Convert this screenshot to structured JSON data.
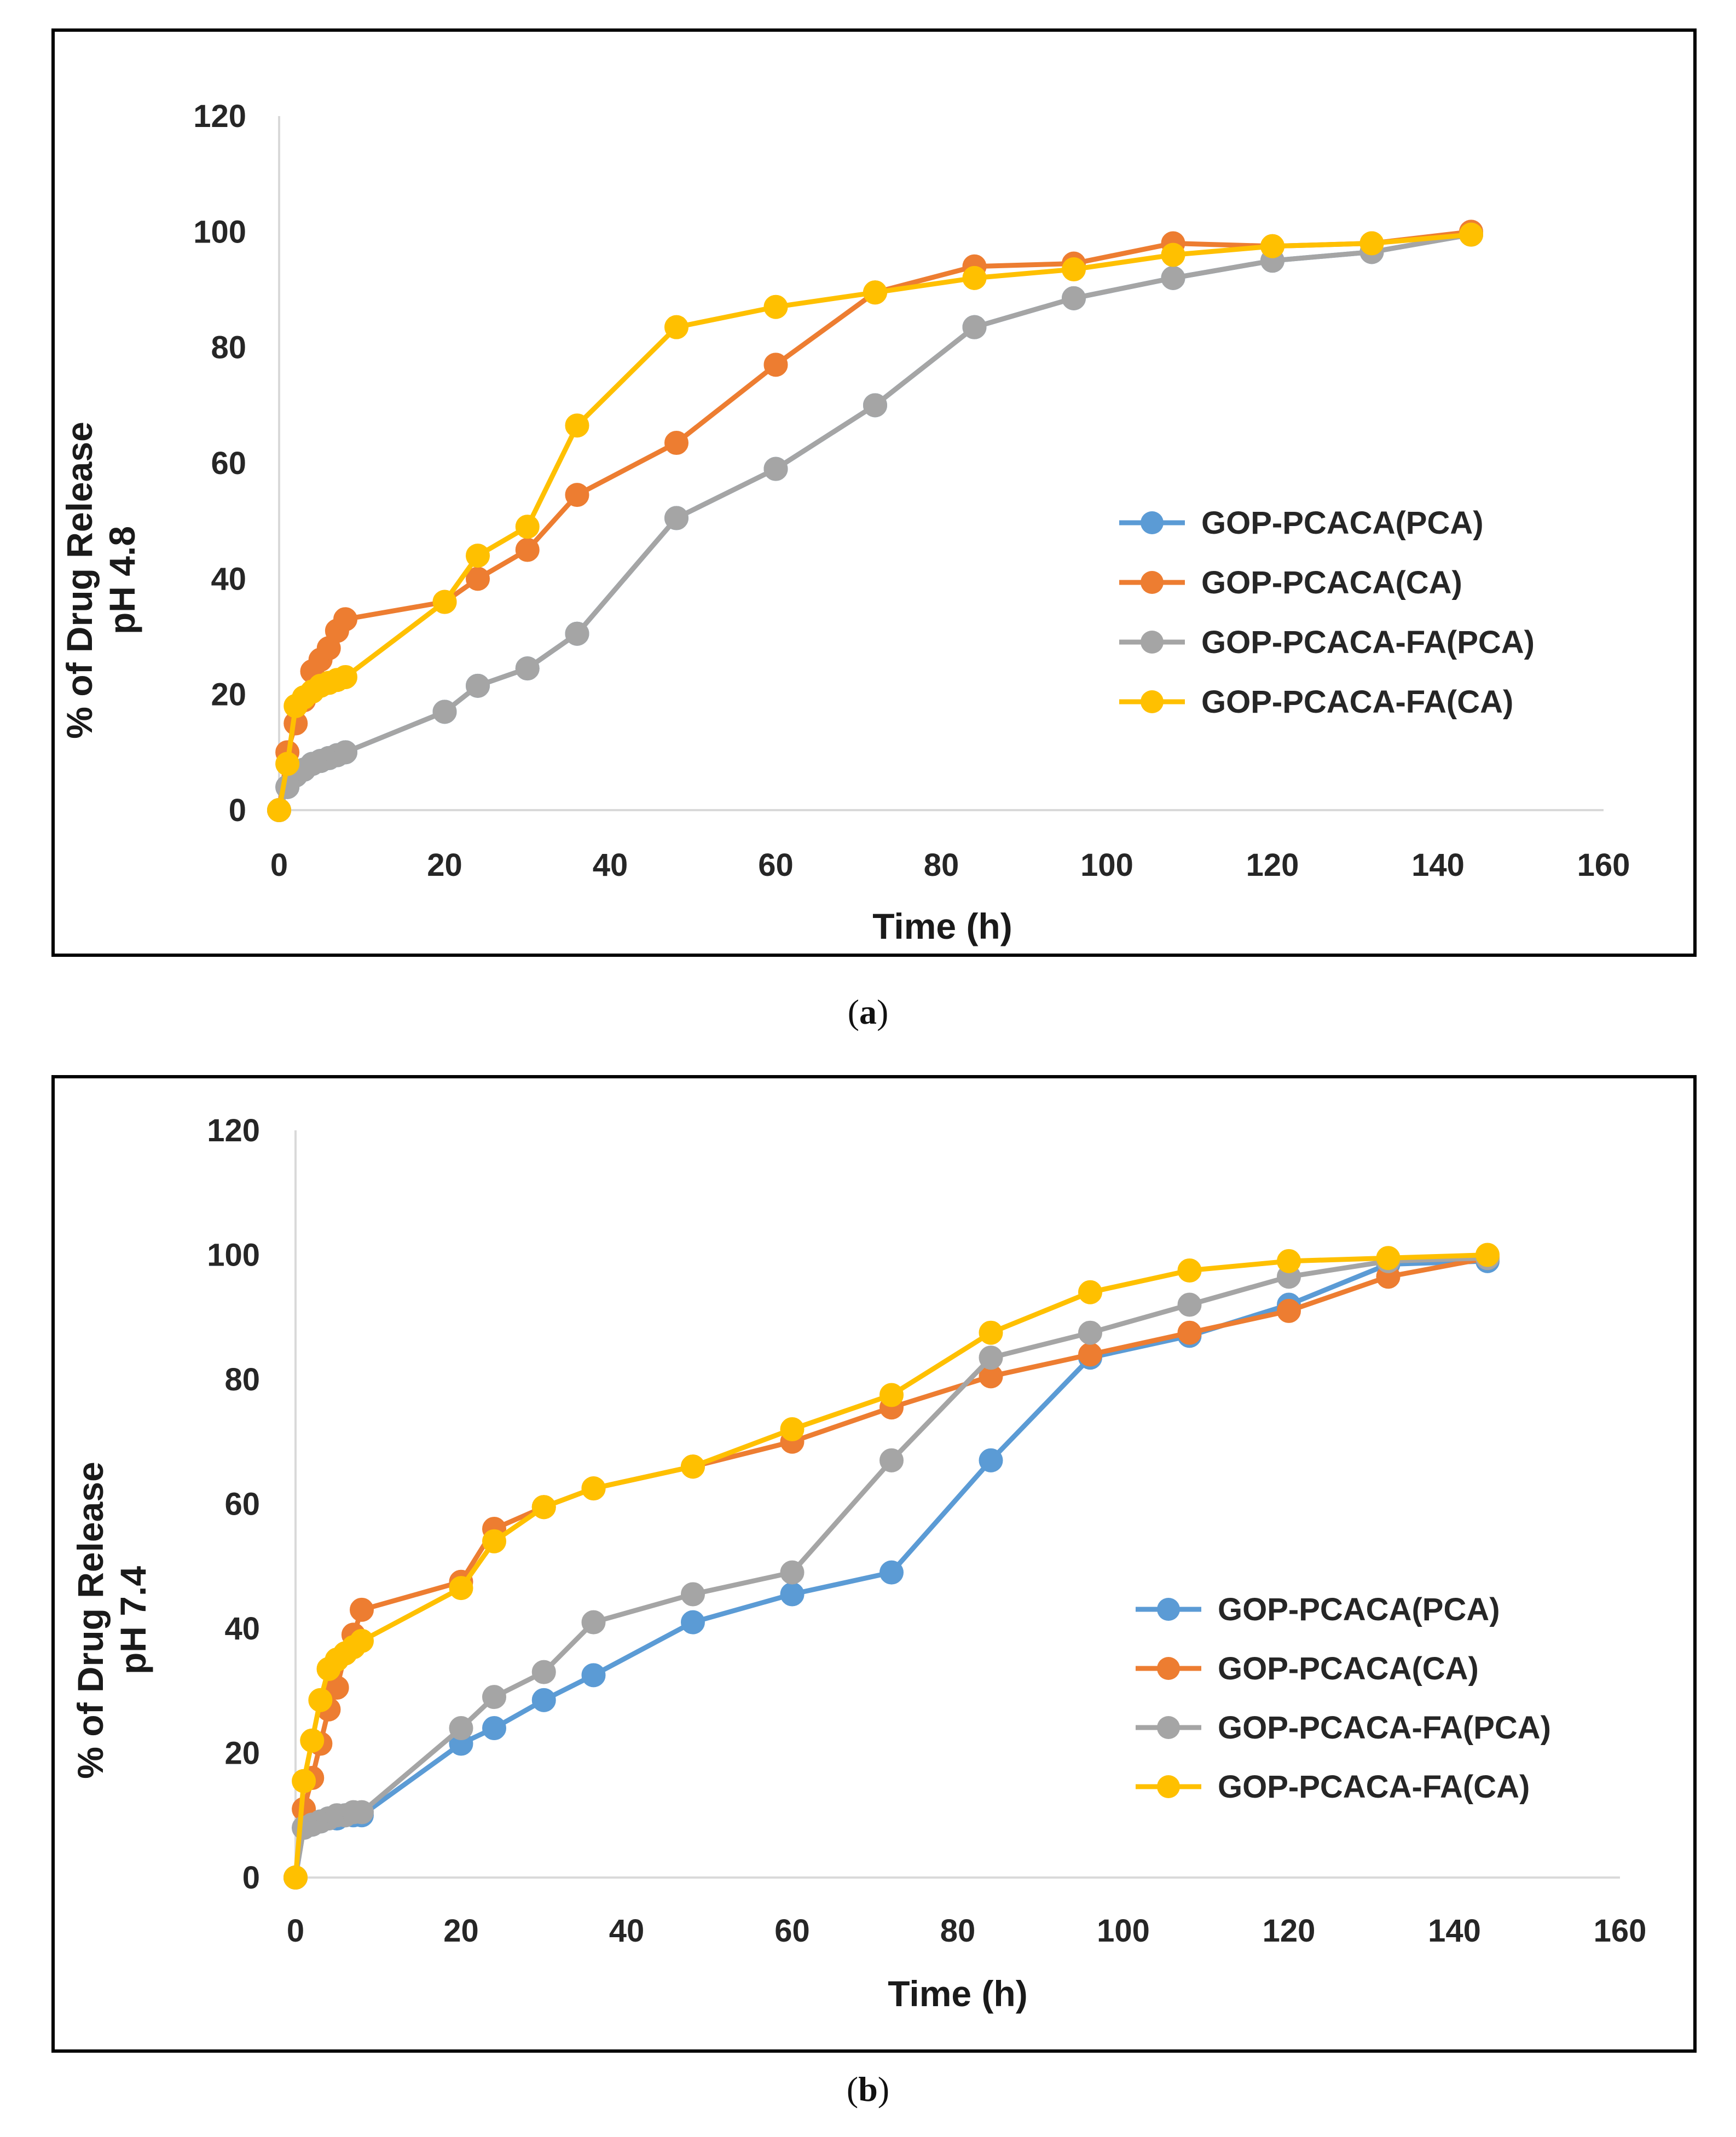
{
  "colors": {
    "GOP-PCACA(PCA)": "#5B9BD5",
    "GOP-PCACA(CA)": "#ED7D31",
    "GOP-PCACA-FA(PCA)": "#A5A5A5",
    "GOP-PCACA-FA(CA)": "#FFC000",
    "axis": "#d9d9d9",
    "frame": "#000000"
  },
  "chart_data": [
    {
      "id": "a",
      "type": "line",
      "caption_letter": "a",
      "xlabel": "Time (h)",
      "ylabel_line1": "% of Drug Release",
      "ylabel_line2": "pH 4.8",
      "xlim": [
        0,
        160
      ],
      "ylim": [
        0,
        120
      ],
      "xticks": [
        0,
        20,
        40,
        60,
        80,
        100,
        120,
        140,
        160
      ],
      "yticks": [
        0,
        20,
        40,
        60,
        80,
        100,
        120
      ],
      "legend_position": "right-middle",
      "legend": [
        "GOP-PCACA(PCA)",
        "GOP-PCACA(CA)",
        "GOP-PCACA-FA(PCA)",
        "GOP-PCACA-FA(CA)"
      ],
      "series": [
        {
          "name": "GOP-PCACA(PCA)",
          "x": [
            0,
            1,
            2,
            3,
            4,
            5,
            6,
            7,
            8,
            20,
            24,
            30,
            36,
            48,
            60,
            72,
            84,
            96,
            108,
            120,
            132,
            144
          ],
          "y": [
            0,
            4,
            6,
            7,
            8,
            8.5,
            9,
            9.5,
            10,
            17,
            21.5,
            24.5,
            30.5,
            50.5,
            59,
            70,
            83.5,
            88.5,
            92,
            95,
            96.5,
            99.5
          ]
        },
        {
          "name": "GOP-PCACA(CA)",
          "x": [
            0,
            1,
            2,
            3,
            4,
            5,
            6,
            7,
            8,
            20,
            24,
            30,
            36,
            48,
            60,
            72,
            84,
            96,
            108,
            120,
            132,
            144
          ],
          "y": [
            0,
            10,
            15,
            19,
            24,
            26,
            28,
            31,
            33,
            36,
            40,
            45,
            54.5,
            63.5,
            77,
            89.5,
            94,
            94.5,
            98,
            97.5,
            98,
            100
          ]
        },
        {
          "name": "GOP-PCACA-FA(PCA)",
          "x": [
            0,
            1,
            2,
            3,
            4,
            5,
            6,
            7,
            8,
            20,
            24,
            30,
            36,
            48,
            60,
            72,
            84,
            96,
            108,
            120,
            132,
            144
          ],
          "y": [
            0,
            4,
            6,
            7,
            8,
            8.5,
            9,
            9.5,
            10,
            17,
            21.5,
            24.5,
            30.5,
            50.5,
            59,
            70,
            83.5,
            88.5,
            92,
            95,
            96.5,
            99.5
          ]
        },
        {
          "name": "GOP-PCACA-FA(CA)",
          "x": [
            0,
            1,
            2,
            3,
            4,
            5,
            6,
            7,
            8,
            20,
            24,
            30,
            36,
            48,
            60,
            72,
            84,
            96,
            108,
            120,
            132,
            144
          ],
          "y": [
            0,
            8,
            18,
            19.5,
            20.5,
            21.5,
            22,
            22.5,
            23,
            36,
            44,
            49,
            66.5,
            83.5,
            87,
            89.5,
            92,
            93.5,
            96,
            97.5,
            98,
            99.5
          ]
        }
      ]
    },
    {
      "id": "b",
      "type": "line",
      "caption_letter": "b",
      "xlabel": "Time (h)",
      "ylabel_line1": "% of Drug Release",
      "ylabel_line2": "pH 7.4",
      "xlim": [
        0,
        160
      ],
      "ylim": [
        0,
        120
      ],
      "xticks": [
        0,
        20,
        40,
        60,
        80,
        100,
        120,
        140,
        160
      ],
      "yticks": [
        0,
        20,
        40,
        60,
        80,
        100,
        120
      ],
      "legend_position": "right-middle",
      "legend": [
        "GOP-PCACA(PCA)",
        "GOP-PCACA(CA)",
        "GOP-PCACA-FA(PCA)",
        "GOP-PCACA-FA(CA)"
      ],
      "series": [
        {
          "name": "GOP-PCACA(PCA)",
          "x": [
            0,
            1,
            2,
            3,
            4,
            5,
            6,
            7,
            8,
            20,
            24,
            30,
            36,
            48,
            60,
            72,
            84,
            96,
            108,
            120,
            132,
            144
          ],
          "y": [
            0,
            8,
            8.5,
            9,
            9.5,
            9.5,
            10,
            10,
            10,
            21.5,
            24,
            28.5,
            32.5,
            41,
            45.5,
            49,
            67,
            83.5,
            87,
            92,
            98.5,
            99
          ]
        },
        {
          "name": "GOP-PCACA(CA)",
          "x": [
            0,
            1,
            2,
            3,
            4,
            5,
            6,
            7,
            8,
            20,
            24,
            30,
            36,
            48,
            60,
            72,
            84,
            96,
            108,
            120,
            132,
            144
          ],
          "y": [
            0,
            11,
            16,
            21.5,
            27,
            30.5,
            36,
            39,
            43,
            47.5,
            56,
            59.5,
            62.5,
            66,
            70,
            75.5,
            80.5,
            84,
            87.5,
            91,
            96.5,
            99.5
          ]
        },
        {
          "name": "GOP-PCACA-FA(PCA)",
          "x": [
            0,
            1,
            2,
            3,
            4,
            5,
            6,
            7,
            8,
            20,
            24,
            30,
            36,
            48,
            60,
            72,
            84,
            96,
            108,
            120,
            132,
            144
          ],
          "y": [
            0,
            8,
            8.5,
            9,
            9.5,
            10,
            10,
            10.5,
            10.5,
            24,
            29,
            33,
            41,
            45.5,
            49,
            67,
            83.5,
            87.5,
            92,
            96.5,
            99,
            99.5
          ]
        },
        {
          "name": "GOP-PCACA-FA(CA)",
          "x": [
            0,
            1,
            2,
            3,
            4,
            5,
            6,
            7,
            8,
            20,
            24,
            30,
            36,
            48,
            60,
            72,
            84,
            96,
            108,
            120,
            132,
            144
          ],
          "y": [
            0,
            15.5,
            22,
            28.5,
            33.5,
            35,
            36,
            37,
            38,
            46.5,
            54,
            59.5,
            62.5,
            66,
            72,
            77.5,
            87.5,
            94,
            97.5,
            99,
            99.5,
            100
          ]
        }
      ]
    }
  ]
}
